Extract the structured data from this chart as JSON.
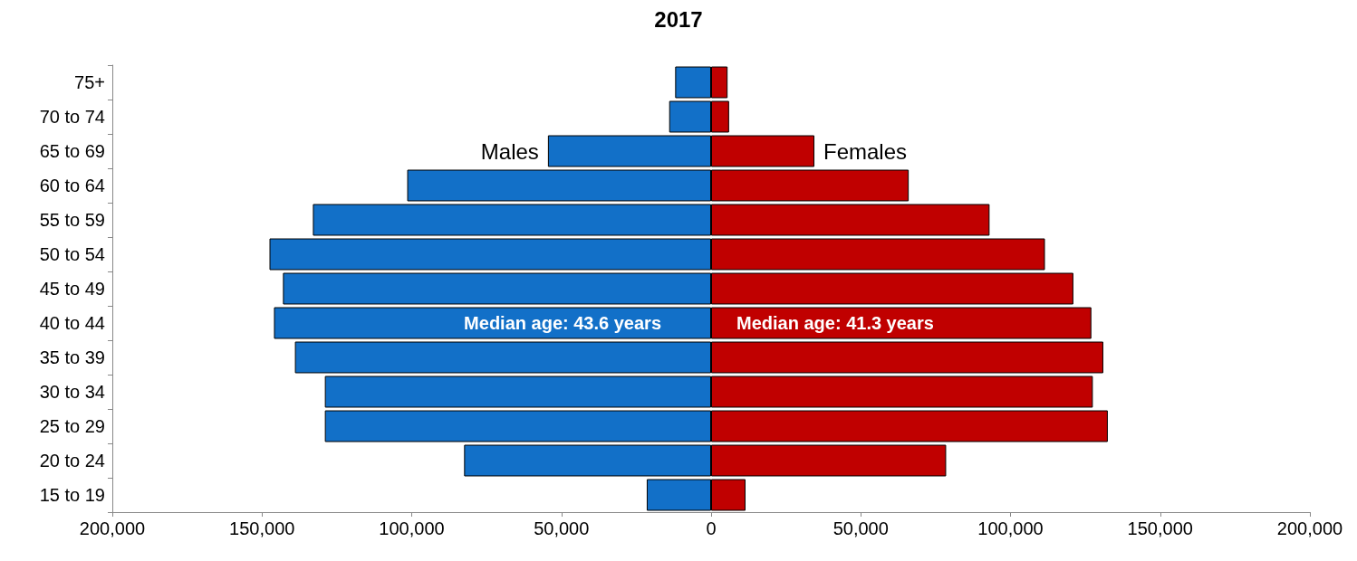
{
  "chart_data": {
    "type": "bar",
    "title": "2017",
    "orientation": "horizontal",
    "stacked": true,
    "categories": [
      "75+",
      "70 to 74",
      "65 to 69",
      "60 to 64",
      "55 to 59",
      "50 to 54",
      "45 to 49",
      "40 to 44",
      "35 to 39",
      "30 to 34",
      "25 to 29",
      "20 to 24",
      "15 to 19"
    ],
    "series": [
      {
        "name": "Males",
        "color": "#1270c8",
        "values": [
          -12000,
          -14000,
          -54500,
          -101500,
          -133000,
          -147500,
          -143000,
          -146000,
          -139000,
          -129000,
          -129000,
          -82500,
          -21500
        ]
      },
      {
        "name": "Females",
        "color": "#c00000",
        "values": [
          5500,
          6000,
          34500,
          66000,
          93000,
          111500,
          121000,
          127000,
          131000,
          127500,
          132500,
          78500,
          11500
        ]
      }
    ],
    "xlim": [
      -200000,
      200000
    ],
    "xticks": [
      {
        "value": -200000,
        "label": "200,000"
      },
      {
        "value": -150000,
        "label": "150,000"
      },
      {
        "value": -100000,
        "label": "100,000"
      },
      {
        "value": -50000,
        "label": "50,000"
      },
      0,
      {
        "value": 50000,
        "label": "50,000"
      },
      {
        "value": 100000,
        "label": "100,000"
      },
      {
        "value": 150000,
        "label": "150,000"
      },
      {
        "value": 200000,
        "label": "200,000"
      }
    ],
    "annotations": [
      "Median age: 43.6 years",
      "Median age: 41.3 years"
    ],
    "grid": false,
    "legend": false
  }
}
